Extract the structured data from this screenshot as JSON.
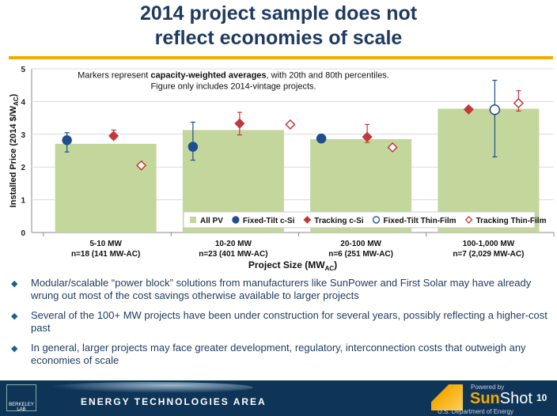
{
  "title": {
    "line1": "2014 project sample does not",
    "line2": "reflect economies of scale"
  },
  "chart_data": {
    "type": "bar",
    "ylabel": "Installed Price  (2014 $/W",
    "ylabel_sub": "AC",
    "ylabel_end": ")",
    "xlabel": "Project Size (MW",
    "xlabel_sub": "AC",
    "xlabel_end": ")",
    "ylim": [
      0,
      5
    ],
    "yticks": [
      "0",
      "1",
      "2",
      "3",
      "4",
      "5"
    ],
    "grid": true,
    "legend_placement": "bottom-center",
    "annotation": {
      "pre": "Markers represent ",
      "bold": "capacity-weighted averages",
      "post": ", with 20th and 80th percentiles.",
      "line2": "Figure only includes 2014-vintage projects."
    },
    "categories": [
      {
        "label": "5-10 MW",
        "n": "n=18 (141 MW-AC)"
      },
      {
        "label": "10-20 MW",
        "n": "n=23 (401 MW-AC)"
      },
      {
        "label": "20-100 MW",
        "n": "n=6 (251 MW-AC)"
      },
      {
        "label": "100-1,000 MW",
        "n": "n=7 (2,029 MW-AC)"
      }
    ],
    "series": [
      {
        "name": "All PV",
        "type": "bar",
        "color": "#c3d69b",
        "values": [
          2.71,
          3.13,
          2.85,
          3.78
        ]
      },
      {
        "name": "Fixed-Tilt c-Si",
        "marker": "circle-filled",
        "color": "#1f4e8c",
        "values": [
          2.82,
          2.62,
          2.87,
          null
        ],
        "p20": [
          2.46,
          2.21,
          null,
          null
        ],
        "p80": [
          3.05,
          3.37,
          null,
          null
        ]
      },
      {
        "name": "Tracking c-Si",
        "marker": "diamond-filled",
        "color": "#c0393b",
        "values": [
          2.95,
          3.33,
          2.92,
          3.76
        ],
        "p20": [
          2.86,
          2.98,
          2.75,
          null
        ],
        "p80": [
          3.13,
          3.67,
          3.3,
          null
        ]
      },
      {
        "name": "Fixed-Tilt Thin-Film",
        "marker": "circle-open",
        "color": "#1f4e8c",
        "values": [
          null,
          null,
          null,
          3.75
        ],
        "p20": [
          null,
          null,
          null,
          2.31
        ],
        "p80": [
          null,
          null,
          null,
          4.65
        ]
      },
      {
        "name": "Tracking Thin-Film",
        "marker": "diamond-open",
        "color": "#c0393b",
        "values": [
          2.05,
          3.3,
          2.6,
          3.95
        ],
        "p20": [
          null,
          null,
          null,
          3.71
        ],
        "p80": [
          null,
          null,
          null,
          4.33
        ]
      }
    ]
  },
  "bullets": [
    "Modular/scalable “power block” solutions from manufacturers like SunPower and First Solar may have already wrung out most of the cost savings otherwise available to larger projects",
    "Several of the 100+ MW projects have been under construction for several years, possibly reflecting a higher-cost past",
    "In general, larger projects may face greater development, regulatory, interconnection costs that outweigh any economies of scale"
  ],
  "footer": {
    "lab": "BERKELEY LAB",
    "area": "Energy Technologies Area",
    "powered": "Powered by",
    "sun": "Sun",
    "shot": "Shot",
    "doe": "U.S. Department of Energy",
    "page": "10"
  }
}
